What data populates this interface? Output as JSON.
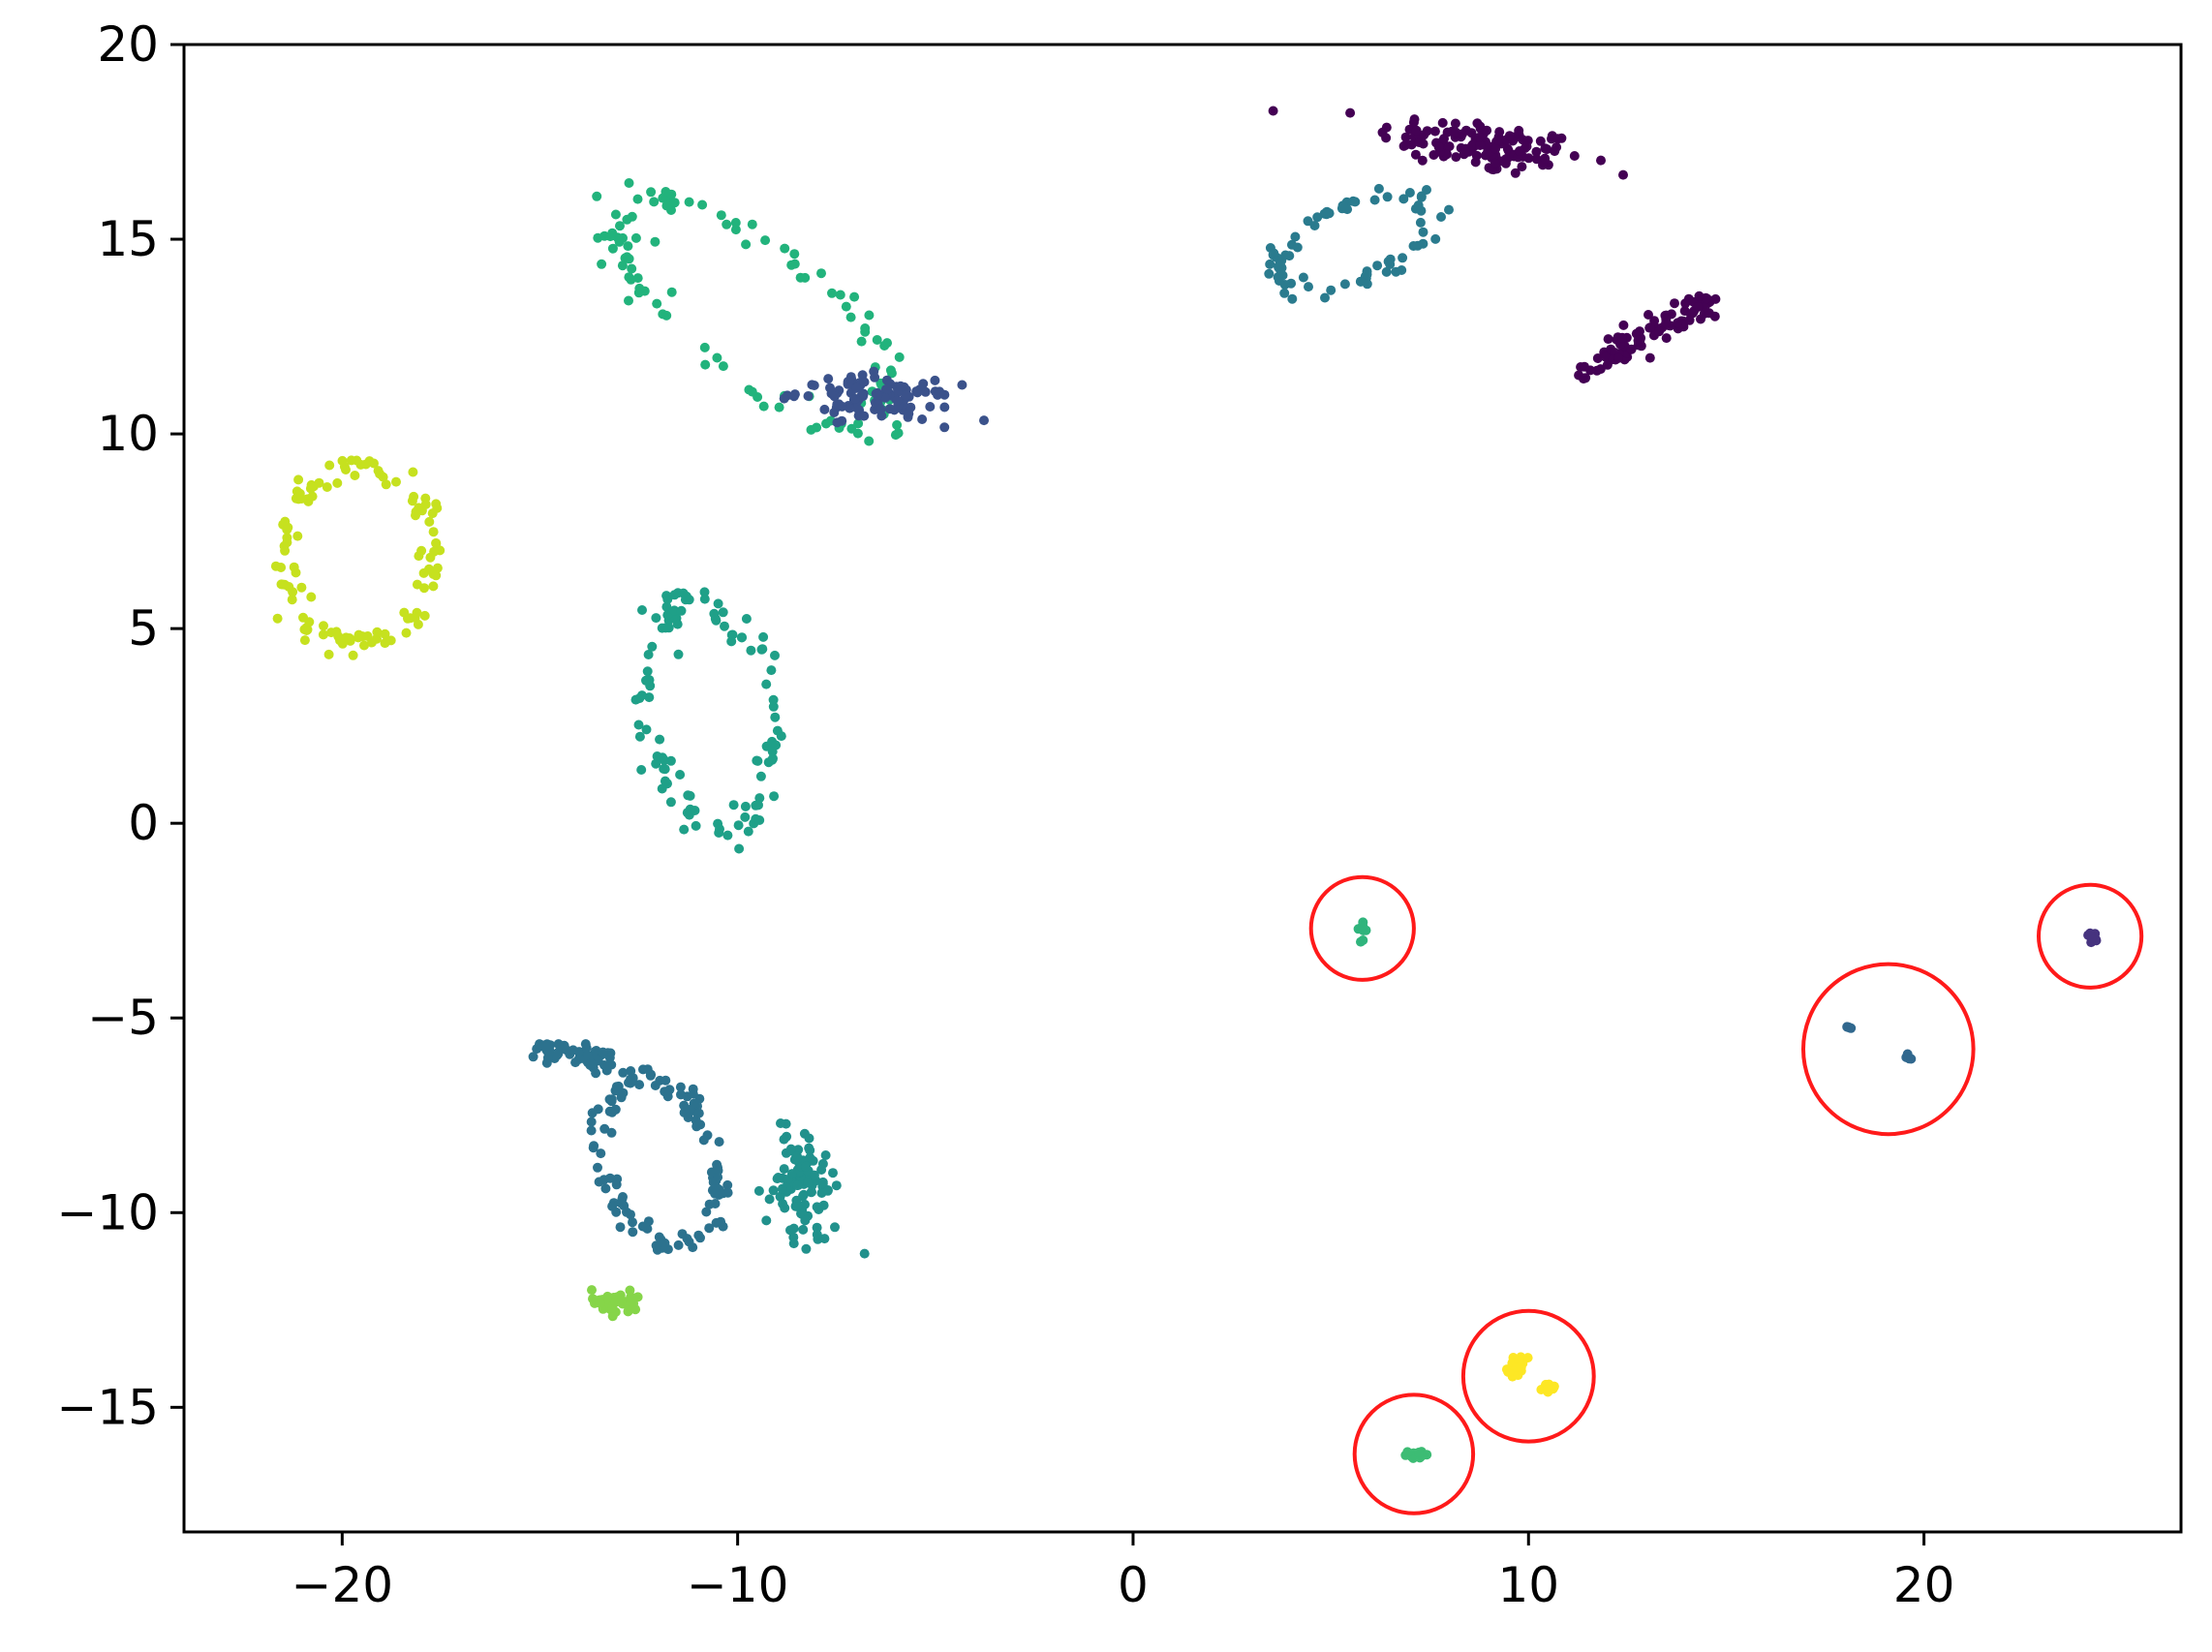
{
  "chart_data": {
    "type": "scatter",
    "title": "",
    "xlabel": "",
    "ylabel": "",
    "xlim": [
      -24,
      26.5
    ],
    "ylim": [
      -18.2,
      20
    ],
    "grid": false,
    "legend": "none",
    "x_ticks": [
      -20,
      -10,
      0,
      10,
      20
    ],
    "y_ticks": [
      20,
      15,
      10,
      5,
      0,
      -5,
      -10,
      -15
    ],
    "x_tick_labels": [
      "−20",
      "−10",
      "0",
      "10",
      "20"
    ],
    "y_tick_labels": [
      "20",
      "15",
      "10",
      "5",
      "0",
      "−5",
      "−10",
      "−15"
    ],
    "colormap": "viridis",
    "clusters": [
      {
        "shape": "blob",
        "color": "#440154",
        "cx": 8.8,
        "cy": 17.4,
        "rx": 2.4,
        "ry": 0.6,
        "angle": -8,
        "n": 130
      },
      {
        "shape": "band",
        "color": "#440154",
        "x1": 11.3,
        "y1": 11.6,
        "x2": 14.6,
        "y2": 13.4,
        "width": 0.35,
        "n": 90
      },
      {
        "shape": "ring",
        "color": "#2a7b8e",
        "cx": 5.6,
        "cy": 14.9,
        "rx": 2.1,
        "ry": 0.95,
        "angle": 22,
        "n": 80
      },
      {
        "shape": "ring",
        "color": "#22b37c",
        "cx": -9.6,
        "cy": 13.1,
        "rx": 4.3,
        "ry": 1.7,
        "angle": -38,
        "n": 110
      },
      {
        "shape": "blob",
        "color": "#3b528b",
        "cx": -6.5,
        "cy": 10.9,
        "rx": 1.8,
        "ry": 0.5,
        "angle": -5,
        "n": 110
      },
      {
        "shape": "ring",
        "color": "#c6e11f",
        "cx": -19.6,
        "cy": 6.9,
        "rx": 1.9,
        "ry": 2.3,
        "angle": 0,
        "n": 120
      },
      {
        "shape": "ring",
        "color": "#1fa088",
        "cx": -10.7,
        "cy": 2.8,
        "rx": 1.6,
        "ry": 3.0,
        "angle": 8,
        "n": 110
      },
      {
        "shape": "band",
        "color": "#2c728e",
        "x1": -15.0,
        "y1": -5.7,
        "x2": -13.2,
        "y2": -6.2,
        "width": 0.3,
        "n": 60
      },
      {
        "shape": "ring",
        "color": "#2c728e",
        "cx": -12.0,
        "cy": -8.7,
        "rx": 1.4,
        "ry": 2.2,
        "angle": 18,
        "n": 120
      },
      {
        "shape": "blob",
        "color": "#21918c",
        "cx": -8.3,
        "cy": -9.3,
        "rx": 0.8,
        "ry": 1.3,
        "angle": 0,
        "n": 100
      },
      {
        "shape": "blob",
        "color": "#86d549",
        "cx": -13.1,
        "cy": -12.3,
        "rx": 0.6,
        "ry": 0.25,
        "angle": 0,
        "n": 45
      },
      {
        "shape": "blob",
        "color": "#2fb47c",
        "cx": 5.8,
        "cy": -2.7,
        "rx": 0.1,
        "ry": 0.2,
        "angle": 0,
        "n": 10
      },
      {
        "shape": "blob",
        "color": "#46337f",
        "cx": 24.2,
        "cy": -2.9,
        "rx": 0.2,
        "ry": 0.12,
        "angle": 0,
        "n": 8
      },
      {
        "shape": "blob",
        "color": "#31688e",
        "cx": 18.1,
        "cy": -5.3,
        "rx": 0.1,
        "ry": 0.1,
        "angle": 0,
        "n": 5
      },
      {
        "shape": "blob",
        "color": "#31688e",
        "cx": 19.6,
        "cy": -6.0,
        "rx": 0.1,
        "ry": 0.1,
        "angle": 0,
        "n": 5
      },
      {
        "shape": "blob",
        "color": "#fde725",
        "cx": 9.7,
        "cy": -13.9,
        "rx": 0.25,
        "ry": 0.25,
        "angle": 0,
        "n": 22
      },
      {
        "shape": "blob",
        "color": "#fde725",
        "cx": 10.5,
        "cy": -14.5,
        "rx": 0.2,
        "ry": 0.15,
        "angle": 0,
        "n": 14
      },
      {
        "shape": "blob",
        "color": "#3dbc74",
        "cx": 7.1,
        "cy": -16.2,
        "rx": 0.3,
        "ry": 0.12,
        "angle": 0,
        "n": 14
      }
    ],
    "highlight_circles": [
      {
        "x": 5.8,
        "y": -2.7,
        "r": 1.3
      },
      {
        "x": 24.2,
        "y": -2.9,
        "r": 1.3
      },
      {
        "x": 19.1,
        "y": -5.8,
        "r": 2.15
      },
      {
        "x": 10.0,
        "y": -14.2,
        "r": 1.65
      },
      {
        "x": 7.1,
        "y": -16.2,
        "r": 1.5
      }
    ],
    "highlight_color": "#ff1a1a"
  }
}
